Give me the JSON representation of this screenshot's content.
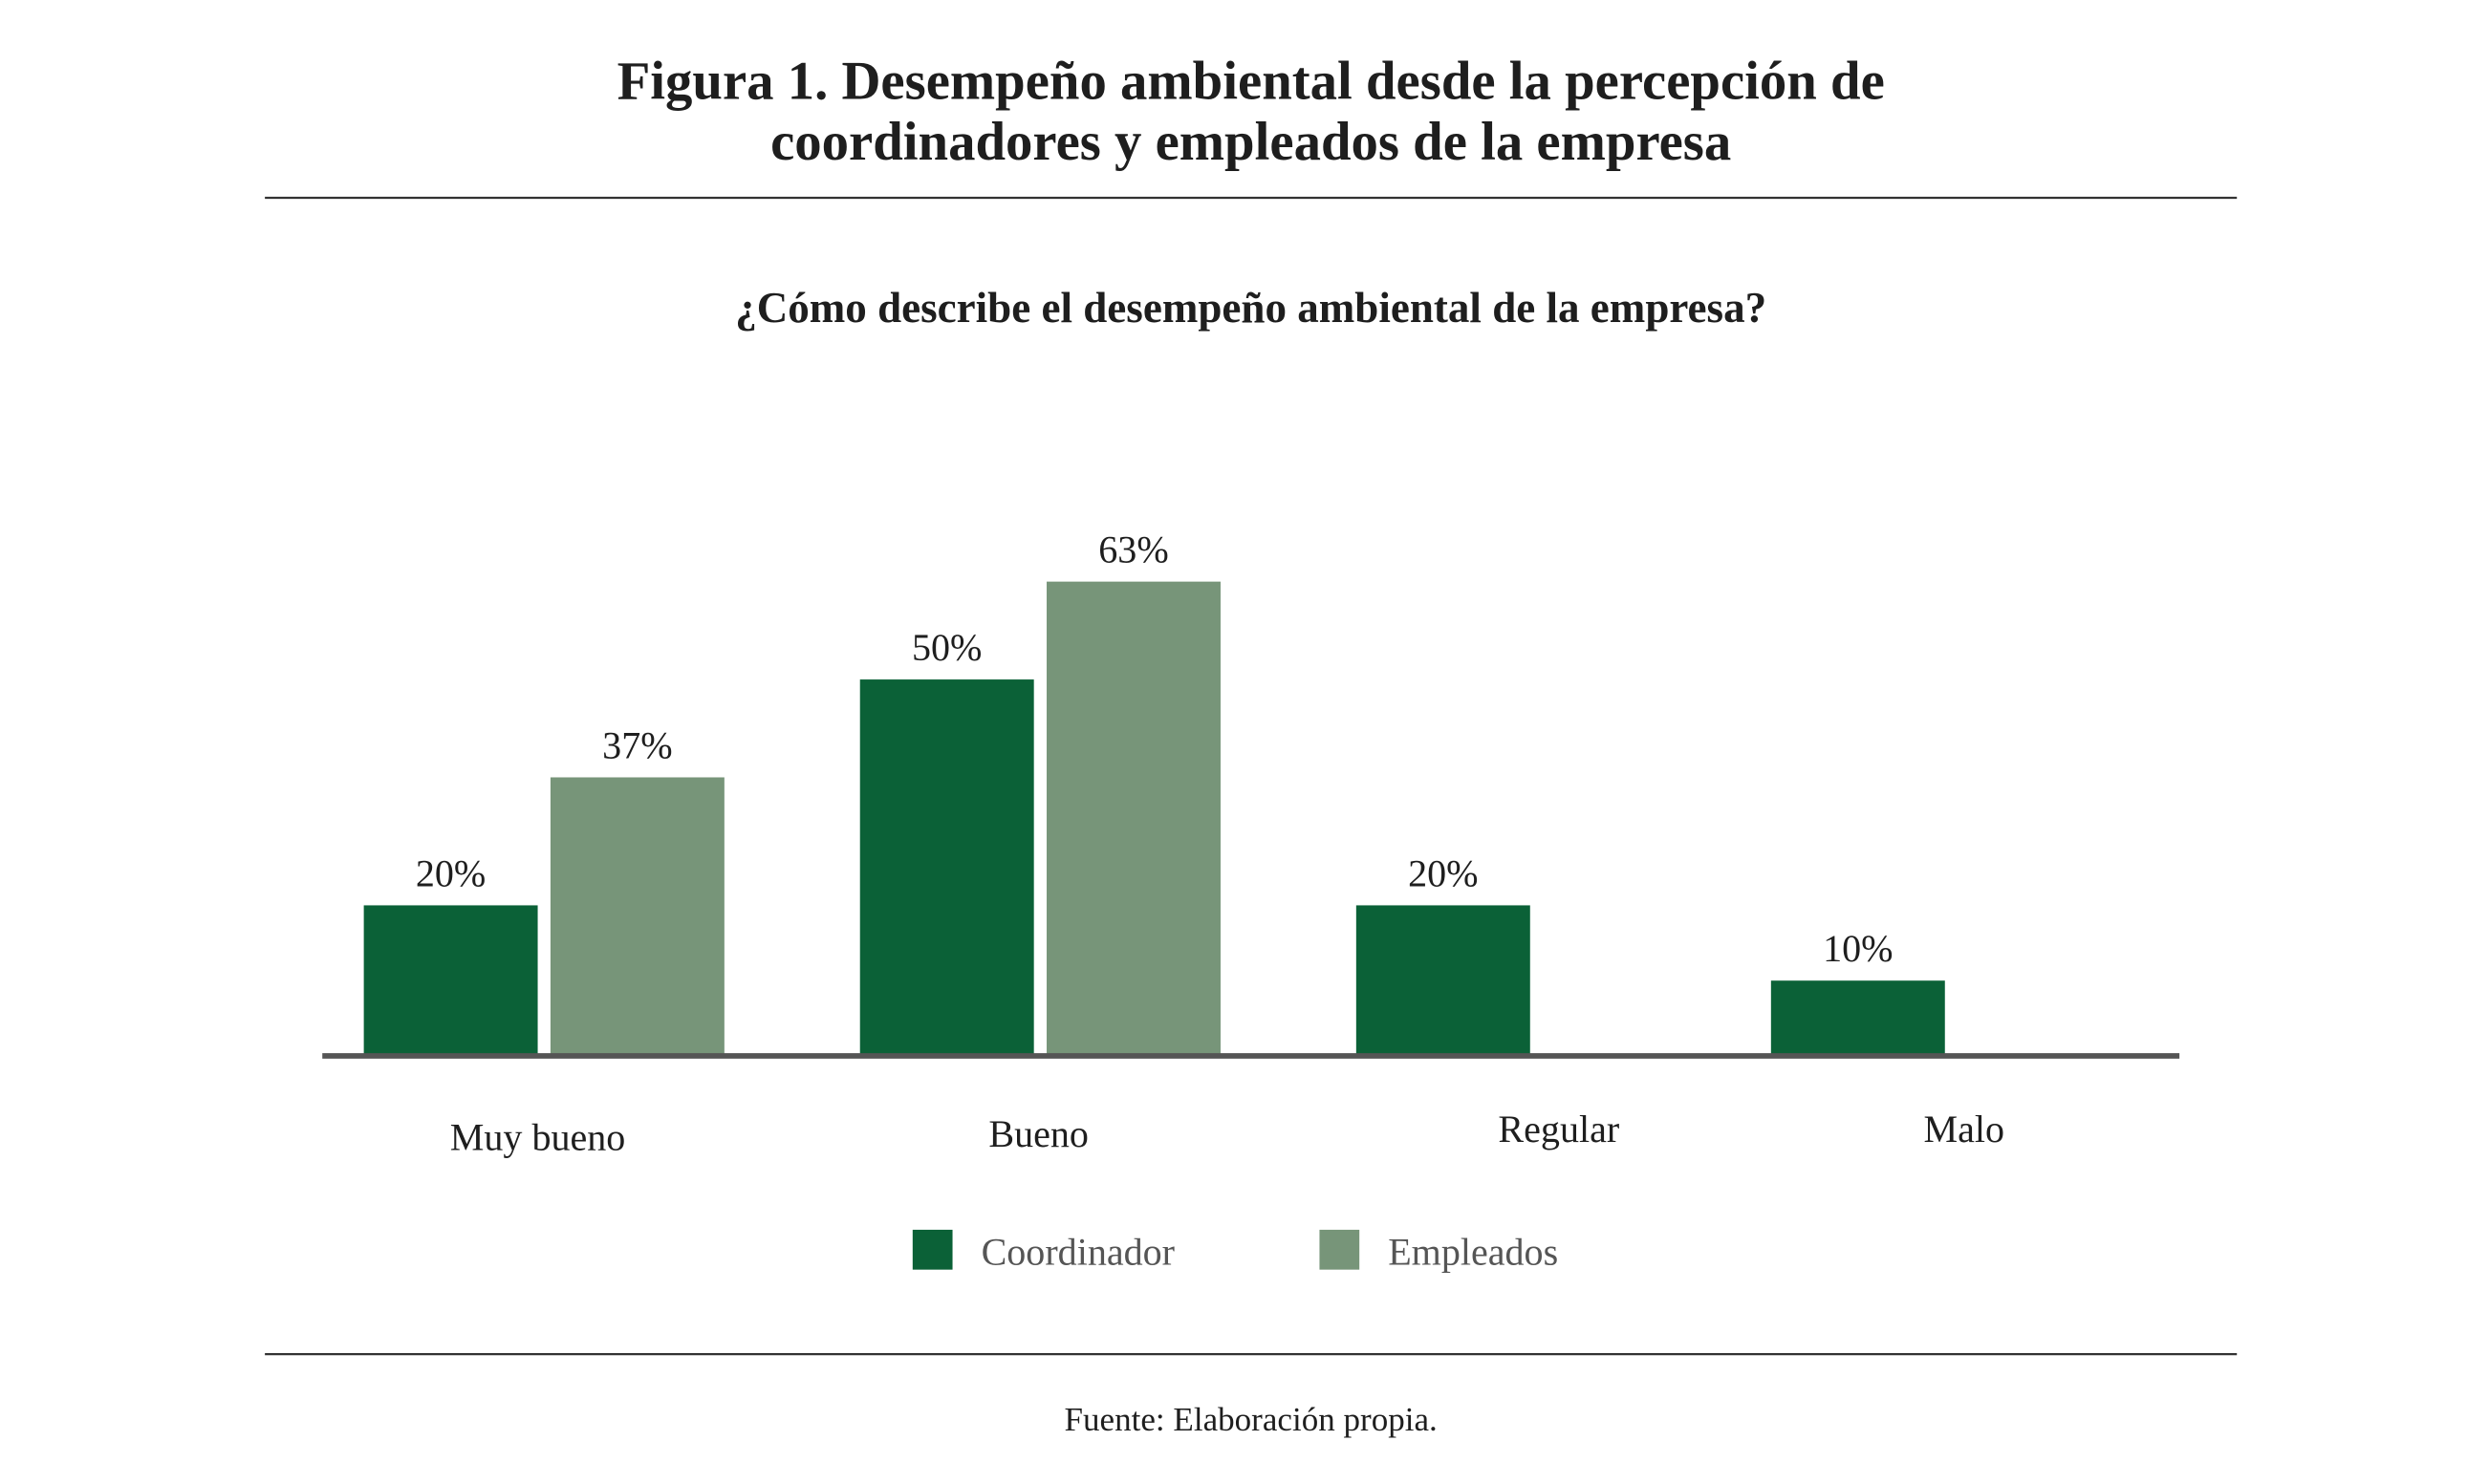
{
  "chart_data": {
    "type": "bar",
    "title": "Figura 1. Desempeño ambiental desde la percepción de coordinadores y empleados de la empresa",
    "title_lines": [
      "Figura 1. Desempeño ambiental desde la percepción de",
      "coordinadores y empleados de la empresa"
    ],
    "subtitle": "¿Cómo describe el desempeño ambiental de la empresa?",
    "categories": [
      "Muy bueno",
      "Bueno",
      "Regular",
      "Malo"
    ],
    "series": [
      {
        "name": "Coordinador",
        "color": "#0b6137",
        "values": [
          20,
          50,
          20,
          10
        ],
        "labels": [
          "20%",
          "50%",
          "20%",
          "10%"
        ]
      },
      {
        "name": "Empleados",
        "color": "#779579",
        "values": [
          37,
          63,
          null,
          null
        ],
        "labels": [
          "37%",
          "63%",
          null,
          null
        ]
      }
    ],
    "xlabel": "",
    "ylabel": "",
    "ylim": [
      0,
      70
    ],
    "grid": false,
    "legend_position": "bottom-center",
    "source": "Fuente: Elaboración propia."
  }
}
